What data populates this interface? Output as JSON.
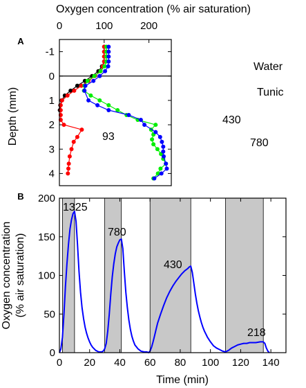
{
  "chart_data": [
    {
      "panel": "A",
      "type": "scatter",
      "title": "",
      "xlabel": "Oxygen concentration (% air saturation)",
      "ylabel": "Depth (mm)",
      "xlim": [
        0,
        250
      ],
      "ylim": [
        -1.5,
        4.5
      ],
      "y_inverted": true,
      "x_ticks": [
        0,
        100,
        200
      ],
      "y_ticks": [
        -1,
        0,
        1,
        2,
        3,
        4
      ],
      "x_tick_labels": [
        "0",
        "100",
        "200"
      ],
      "y_tick_labels": [
        "-1",
        "0",
        "1",
        "2",
        "3",
        "4"
      ],
      "series": [
        {
          "color": "#000000",
          "points": [
            [
              100,
              -1.2
            ],
            [
              100,
              -1.0
            ],
            [
              100,
              -0.8
            ],
            [
              100,
              -0.6
            ],
            [
              95,
              -0.4
            ],
            [
              87,
              -0.2
            ],
            [
              73,
              0.0
            ],
            [
              57,
              0.2
            ],
            [
              40,
              0.4
            ],
            [
              25,
              0.6
            ],
            [
              12,
              0.8
            ],
            [
              5,
              1.0
            ],
            [
              2,
              1.2
            ],
            [
              1,
              1.4
            ]
          ]
        },
        {
          "label": "93",
          "color": "#ff0000",
          "points": [
            [
              100,
              -1.2
            ],
            [
              100,
              -1.0
            ],
            [
              100,
              -0.8
            ],
            [
              100,
              -0.6
            ],
            [
              97,
              -0.4
            ],
            [
              92,
              -0.2
            ],
            [
              79,
              0.0
            ],
            [
              65,
              0.2
            ],
            [
              49,
              0.4
            ],
            [
              33,
              0.6
            ],
            [
              18,
              0.8
            ],
            [
              6,
              1.0
            ],
            [
              3,
              1.2
            ],
            [
              3,
              1.4
            ],
            [
              3,
              1.6
            ],
            [
              3,
              1.8
            ],
            [
              10,
              2.0
            ],
            [
              50,
              2.2
            ],
            [
              40,
              2.5
            ],
            [
              32,
              2.7
            ],
            [
              27,
              3.0
            ],
            [
              23,
              3.3
            ],
            [
              21,
              3.6
            ],
            [
              20,
              3.8
            ],
            [
              19,
              4.0
            ]
          ]
        },
        {
          "label": "430",
          "color": "#00ee00",
          "points": [
            [
              105,
              -1.2
            ],
            [
              105,
              -1.0
            ],
            [
              105,
              -0.8
            ],
            [
              105,
              -0.6
            ],
            [
              101,
              -0.4
            ],
            [
              92,
              -0.2
            ],
            [
              78,
              0.0
            ],
            [
              63,
              0.2
            ],
            [
              56,
              0.4
            ],
            [
              55,
              0.6
            ],
            [
              70,
              0.8
            ],
            [
              90,
              1.0
            ],
            [
              110,
              1.2
            ],
            [
              130,
              1.4
            ],
            [
              150,
              1.6
            ],
            [
              175,
              1.8
            ],
            [
              215,
              2.0
            ],
            [
              205,
              2.2
            ],
            [
              210,
              2.4
            ],
            [
              207,
              2.6
            ],
            [
              210,
              2.8
            ],
            [
              219,
              3.0
            ],
            [
              227,
              3.2
            ],
            [
              232,
              3.4
            ],
            [
              238,
              3.6
            ],
            [
              226,
              3.8
            ],
            [
              220,
              4.0
            ],
            [
              210,
              4.2
            ]
          ]
        },
        {
          "label": "780",
          "color": "#0000ff",
          "points": [
            [
              110,
              -1.2
            ],
            [
              110,
              -1.0
            ],
            [
              110,
              -0.8
            ],
            [
              110,
              -0.6
            ],
            [
              109,
              -0.4
            ],
            [
              102,
              -0.2
            ],
            [
              90,
              0.0
            ],
            [
              76,
              0.2
            ],
            [
              58,
              0.4
            ],
            [
              56,
              0.6
            ],
            [
              65,
              1.0
            ],
            [
              85,
              1.2
            ],
            [
              110,
              1.4
            ],
            [
              155,
              1.6
            ],
            [
              182,
              1.8
            ],
            [
              190,
              2.0
            ],
            [
              215,
              2.3
            ],
            [
              225,
              2.5
            ],
            [
              229,
              2.7
            ],
            [
              232,
              2.9
            ],
            [
              232,
              3.1
            ],
            [
              233,
              3.3
            ],
            [
              238,
              3.6
            ],
            [
              240,
              3.8
            ],
            [
              228,
              4.0
            ],
            [
              212,
              4.2
            ]
          ]
        }
      ],
      "annotations": [
        {
          "text": "93"
        },
        {
          "text": "430"
        },
        {
          "text": "780"
        },
        {
          "text": "Water"
        },
        {
          "text": "Tunic"
        }
      ]
    },
    {
      "panel": "B",
      "type": "line",
      "title": "",
      "xlabel": "Time (min)",
      "ylabel": "Oxygen concentration (% air saturation)",
      "xlim": [
        0,
        150
      ],
      "ylim": [
        0,
        200
      ],
      "x_ticks": [
        0,
        20,
        40,
        60,
        80,
        100,
        120,
        140
      ],
      "y_ticks": [
        0,
        50,
        100,
        150,
        200
      ],
      "x_tick_labels": [
        "0",
        "20",
        "40",
        "60",
        "80",
        "100",
        "120",
        "140"
      ],
      "y_tick_labels": [
        "0",
        "50",
        "100",
        "150",
        "200"
      ],
      "shaded_intervals": [
        [
          2,
          10
        ],
        [
          30,
          41
        ],
        [
          60,
          87
        ],
        [
          110,
          135
        ]
      ],
      "series": [
        {
          "color": "#0000ff",
          "points": [
            [
              0,
              0
            ],
            [
              1,
              5
            ],
            [
              2,
              20
            ],
            [
              3,
              50
            ],
            [
              4,
              85
            ],
            [
              5,
              115
            ],
            [
              6,
              140
            ],
            [
              7,
              160
            ],
            [
              8,
              172
            ],
            [
              9,
              180
            ],
            [
              10,
              183
            ],
            [
              11,
              170
            ],
            [
              12,
              140
            ],
            [
              13,
              105
            ],
            [
              14,
              78
            ],
            [
              15,
              58
            ],
            [
              16,
              44
            ],
            [
              17,
              33
            ],
            [
              18,
              25
            ],
            [
              19,
              19
            ],
            [
              20,
              14
            ],
            [
              21,
              10
            ],
            [
              22,
              7
            ],
            [
              23,
              5
            ],
            [
              24,
              3
            ],
            [
              26,
              1
            ],
            [
              28,
              1
            ],
            [
              29,
              2
            ],
            [
              30,
              5
            ],
            [
              31,
              12
            ],
            [
              32,
              28
            ],
            [
              33,
              50
            ],
            [
              34,
              75
            ],
            [
              35,
              98
            ],
            [
              36,
              115
            ],
            [
              37,
              128
            ],
            [
              38,
              137
            ],
            [
              39,
              142
            ],
            [
              40,
              146
            ],
            [
              41,
              147
            ],
            [
              42,
              135
            ],
            [
              43,
              105
            ],
            [
              44,
              78
            ],
            [
              45,
              58
            ],
            [
              46,
              42
            ],
            [
              47,
              30
            ],
            [
              48,
              21
            ],
            [
              49,
              15
            ],
            [
              50,
              10
            ],
            [
              52,
              5
            ],
            [
              54,
              2
            ],
            [
              56,
              1
            ],
            [
              58,
              1
            ],
            [
              59,
              0
            ],
            [
              60,
              2
            ],
            [
              61,
              7
            ],
            [
              62,
              14
            ],
            [
              63,
              22
            ],
            [
              64,
              30
            ],
            [
              65,
              38
            ],
            [
              67,
              50
            ],
            [
              69,
              61
            ],
            [
              71,
              71
            ],
            [
              73,
              79
            ],
            [
              75,
              86
            ],
            [
              77,
              92
            ],
            [
              79,
              97
            ],
            [
              81,
              102
            ],
            [
              83,
              106
            ],
            [
              85,
              109
            ],
            [
              86,
              111
            ],
            [
              87,
              112
            ],
            [
              88,
              104
            ],
            [
              89,
              90
            ],
            [
              90,
              76
            ],
            [
              91,
              64
            ],
            [
              92,
              54
            ],
            [
              93,
              46
            ],
            [
              94,
              39
            ],
            [
              95,
              33
            ],
            [
              96,
              28
            ],
            [
              97,
              24
            ],
            [
              98,
              20
            ],
            [
              100,
              14
            ],
            [
              102,
              9
            ],
            [
              104,
              6
            ],
            [
              106,
              4
            ],
            [
              108,
              2
            ],
            [
              110,
              1
            ],
            [
              112,
              3
            ],
            [
              114,
              6
            ],
            [
              116,
              8
            ],
            [
              118,
              10
            ],
            [
              120,
              11
            ],
            [
              122,
              12
            ],
            [
              124,
              12
            ],
            [
              126,
              13
            ],
            [
              128,
              13
            ],
            [
              130,
              13
            ],
            [
              133,
              14
            ],
            [
              135,
              14
            ],
            [
              136,
              12
            ],
            [
              137,
              6
            ],
            [
              138,
              2
            ],
            [
              139,
              0
            ]
          ]
        }
      ],
      "annotations": [
        {
          "text": "1325"
        },
        {
          "text": "780"
        },
        {
          "text": "430"
        },
        {
          "text": "218"
        }
      ]
    }
  ]
}
